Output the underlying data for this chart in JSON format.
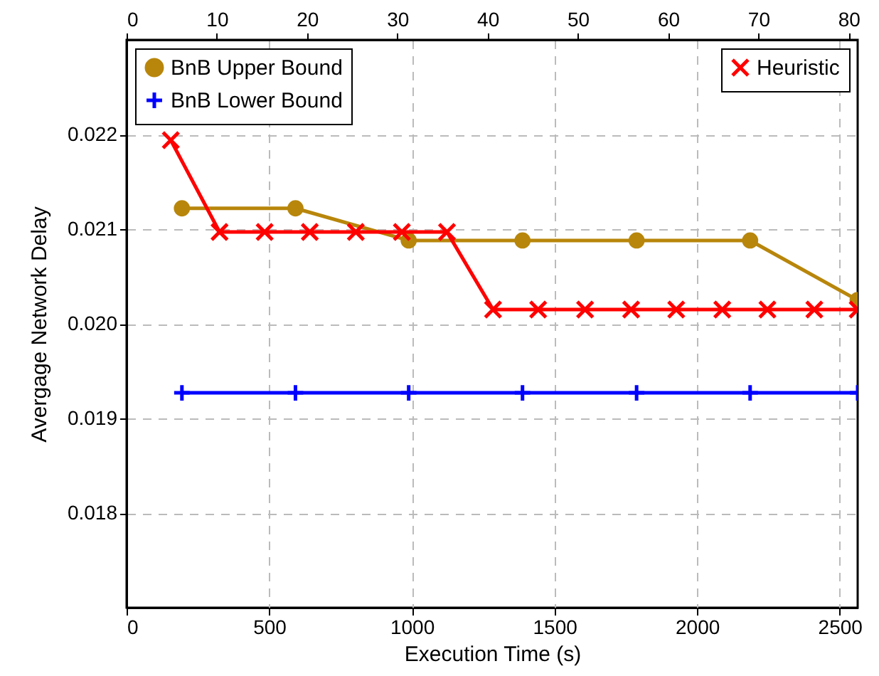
{
  "chart_data": {
    "type": "line",
    "xlabel": "Execution Time (s)",
    "ylabel": "Avergage Network Delay",
    "xlim": [
      0,
      2563
    ],
    "xticks": [
      0,
      500,
      1000,
      1500,
      2000,
      2500
    ],
    "x2lim": [
      0,
      81
    ],
    "x2ticks": [
      0,
      10,
      20,
      30,
      40,
      50,
      60,
      70,
      80
    ],
    "ylim": [
      0.017,
      0.023
    ],
    "yticks": [
      0.018,
      0.019,
      {
        "value": 0.02,
        "label": "0.020"
      },
      0.021,
      0.022
    ],
    "grid": true,
    "legend": "top",
    "line_style": "solid",
    "series": [
      {
        "name": "BnB Upper Bound",
        "color": "#b8860b",
        "marker": "circle",
        "x": [
          194,
          592,
          989,
          1388,
          1788,
          2186,
          2563
        ],
        "values": [
          0.02122,
          0.02122,
          0.02088,
          0.02088,
          0.02088,
          0.02088,
          0.02025
        ]
      },
      {
        "name": "BnB Lower Bound",
        "color": "#0000ff",
        "marker": "plus",
        "x": [
          194,
          592,
          989,
          1388,
          1788,
          2186,
          2563
        ],
        "values": [
          0.01927,
          0.01927,
          0.01927,
          0.01927,
          0.01927,
          0.01927,
          0.01927
        ]
      },
      {
        "name": "Heuristic",
        "color": "#ff0000",
        "marker": "cross",
        "axis": "x2",
        "x": [
          4.9,
          10.3,
          15.3,
          20.3,
          25.4,
          30.5,
          35.5,
          40.6,
          45.6,
          50.8,
          55.9,
          60.9,
          66.0,
          71.0,
          76.2,
          81.0
        ],
        "values": [
          0.02194,
          0.02097,
          0.02097,
          0.02097,
          0.02097,
          0.02097,
          0.02097,
          0.02015,
          0.02015,
          0.02015,
          0.02015,
          0.02015,
          0.02015,
          0.02015,
          0.02015,
          0.02015
        ]
      }
    ]
  }
}
